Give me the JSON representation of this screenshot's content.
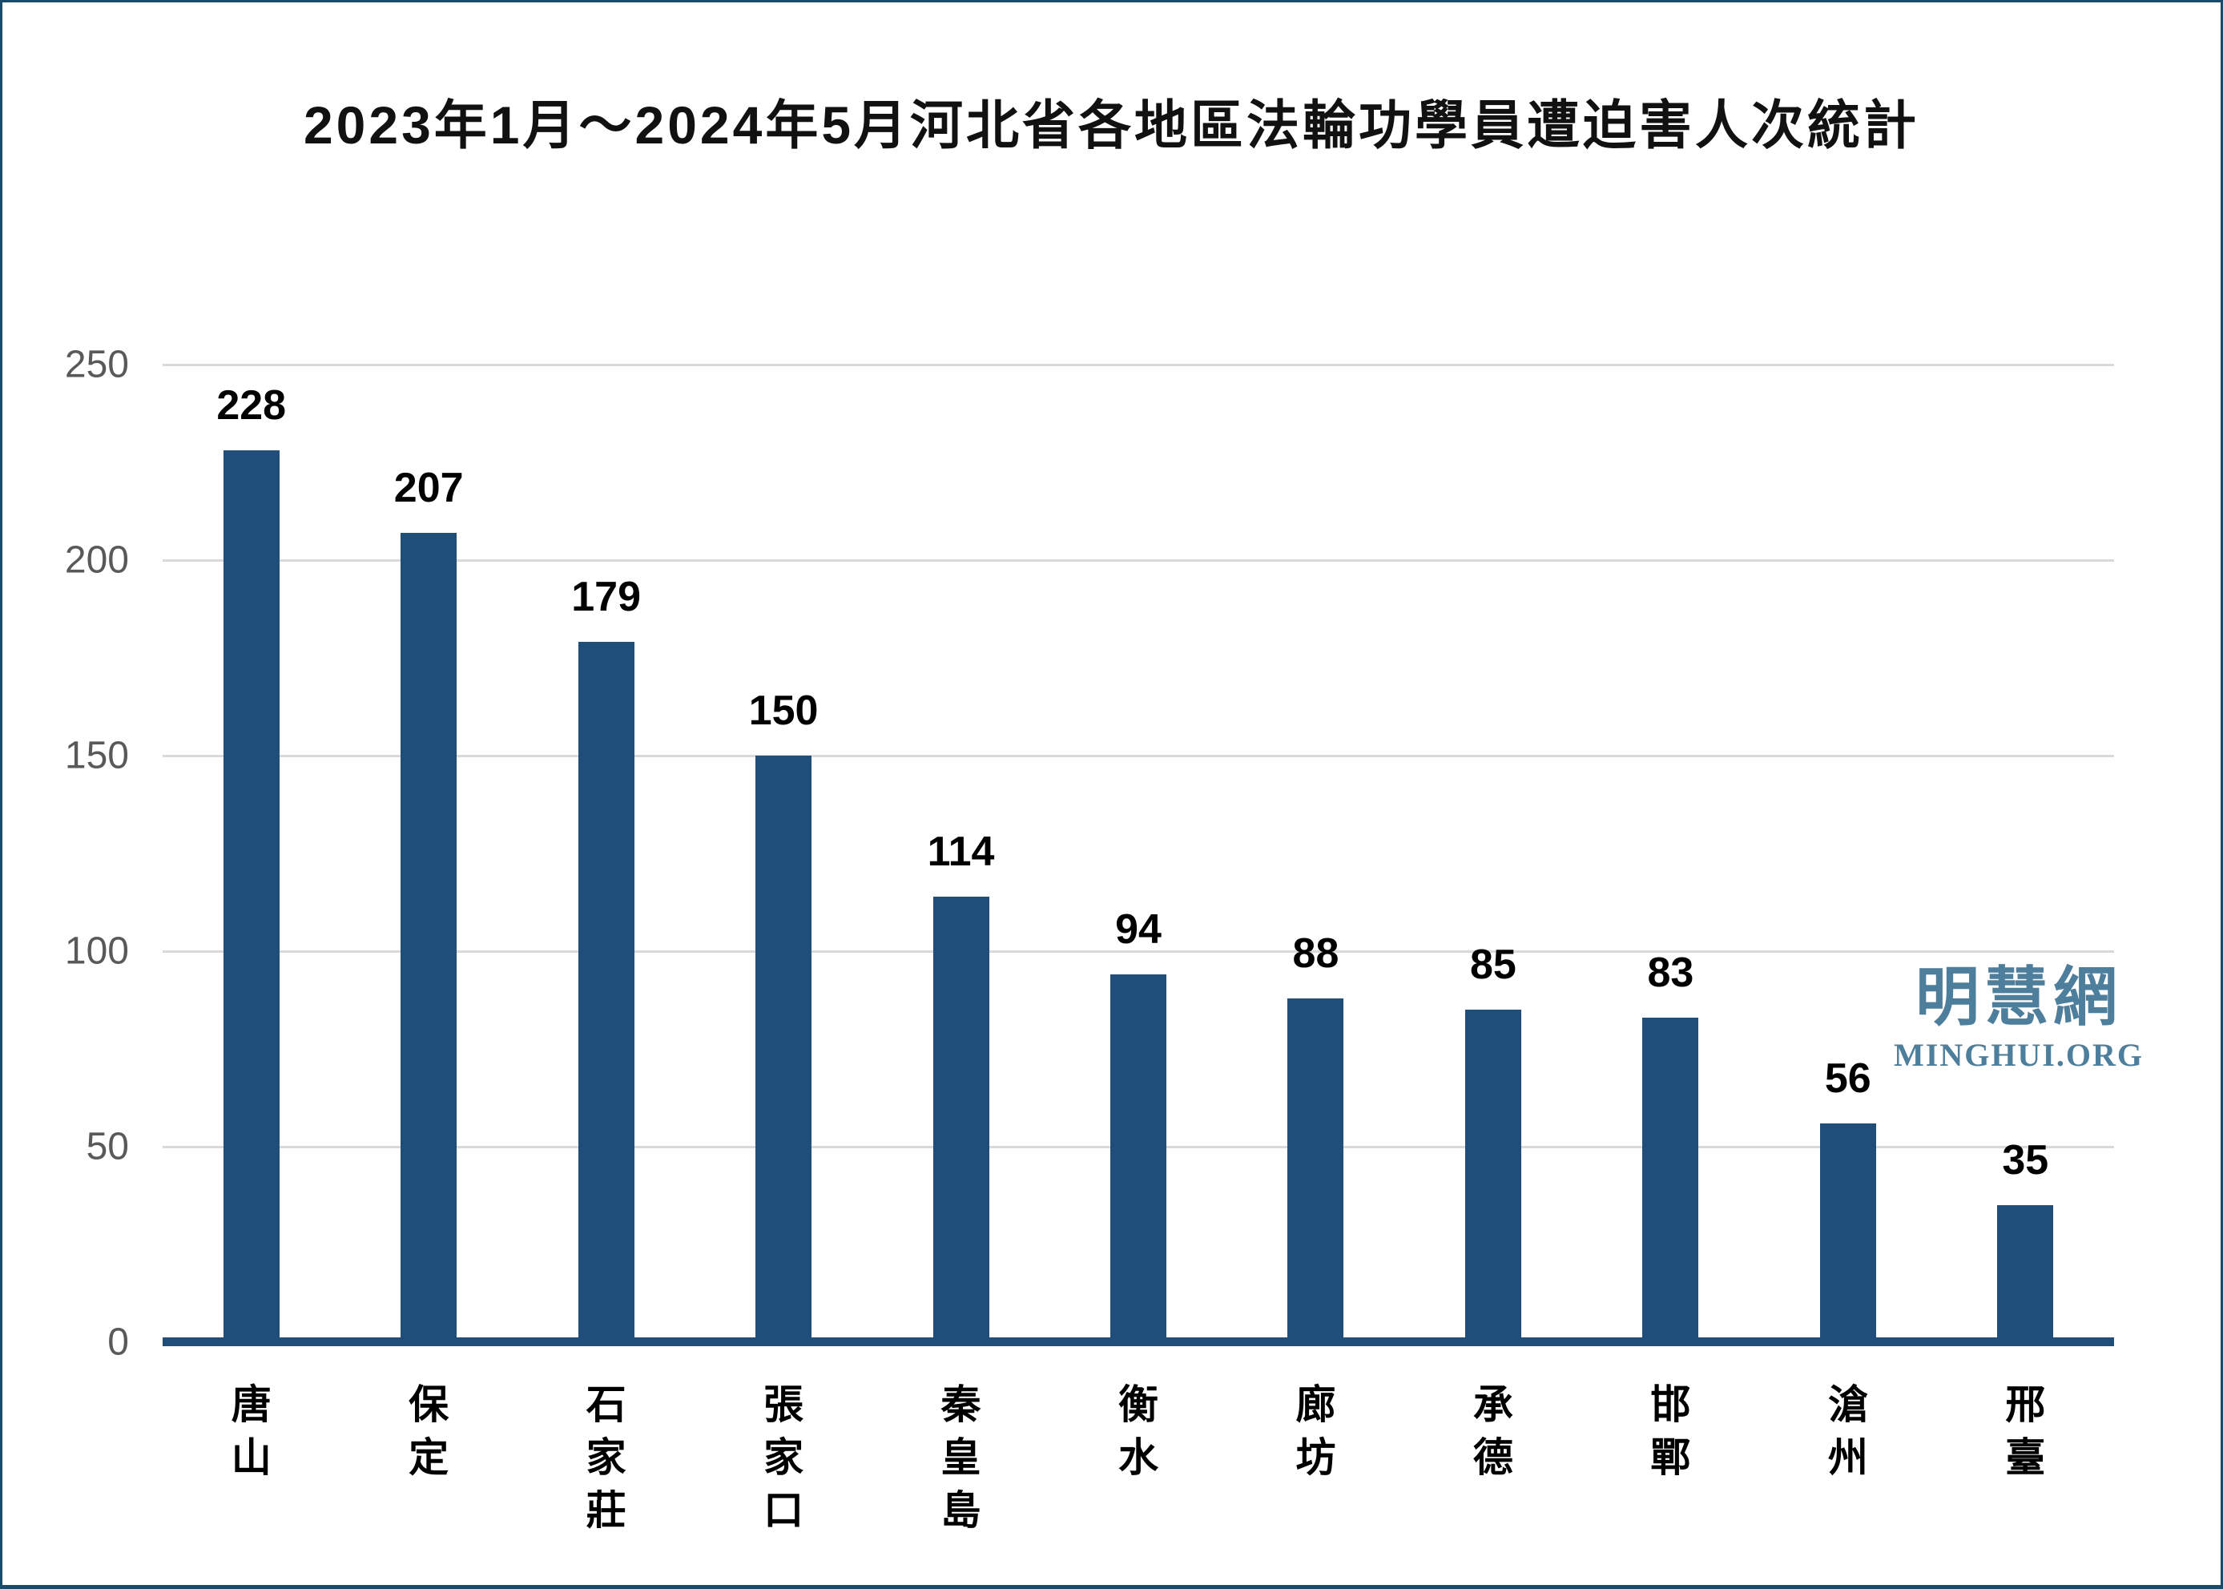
{
  "chart_data": {
    "type": "bar",
    "title": "2023年1月～2024年5月河北省各地區法輪功學員遭迫害人次統計",
    "categories": [
      "唐山",
      "保定",
      "石家莊",
      "張家口",
      "秦皇島",
      "衡水",
      "廊坊",
      "承德",
      "邯鄲",
      "滄州",
      "邢臺"
    ],
    "values": [
      228,
      207,
      179,
      150,
      114,
      94,
      88,
      85,
      83,
      56,
      35
    ],
    "xlabel": "",
    "ylabel": "",
    "ylim": [
      0,
      250
    ],
    "yticks": [
      0,
      50,
      100,
      150,
      200,
      250
    ],
    "grid": "horizontal",
    "value_labels": true,
    "legend": "none",
    "colors": {
      "bar": "#1f4e7a",
      "axis": "#1f4e7a",
      "gridline": "#d9d9d9",
      "tick_label": "#595959",
      "value_label": "#000000",
      "title": "#111111",
      "border": "#1b4a68"
    }
  },
  "watermark": {
    "chinese": "明慧網",
    "latin": "MINGHUI.ORG",
    "color": "#4d7e9c"
  }
}
